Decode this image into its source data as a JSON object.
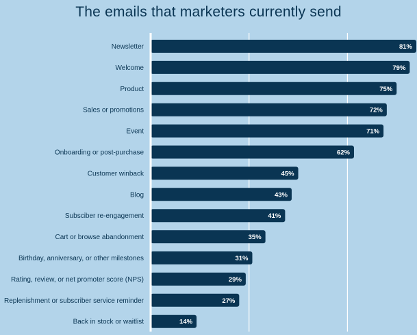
{
  "chart_data": {
    "type": "bar",
    "orientation": "horizontal",
    "title": "The emails that marketers currently send",
    "categories": [
      "Newsletter",
      "Welcome",
      "Product",
      "Sales or promotions",
      "Event",
      "Onboarding or post-purchase",
      "Customer winback",
      "Blog",
      "Subsciber re-engagement",
      "Cart or browse abandonment",
      "Birthday, anniversary, or other milestones",
      "Rating, review, or net promoter score (NPS)",
      "Replenishment or subscriber service reminder",
      "Back in stock or waitlist"
    ],
    "values": [
      81,
      79,
      75,
      72,
      71,
      62,
      45,
      43,
      41,
      35,
      31,
      29,
      27,
      14
    ],
    "value_labels": [
      "81%",
      "79%",
      "75%",
      "72%",
      "71%",
      "62%",
      "45%",
      "43%",
      "41%",
      "35%",
      "31%",
      "29%",
      "27%",
      "14%"
    ],
    "xlim": [
      0,
      100
    ],
    "grid": true,
    "legend": "none",
    "colors": {
      "background": "#b3d4ea",
      "bar": "#0a3553",
      "title": "#0a3553",
      "label": "#0a3553",
      "value_text": "#ffffff",
      "gridline": "#ffffff"
    }
  }
}
